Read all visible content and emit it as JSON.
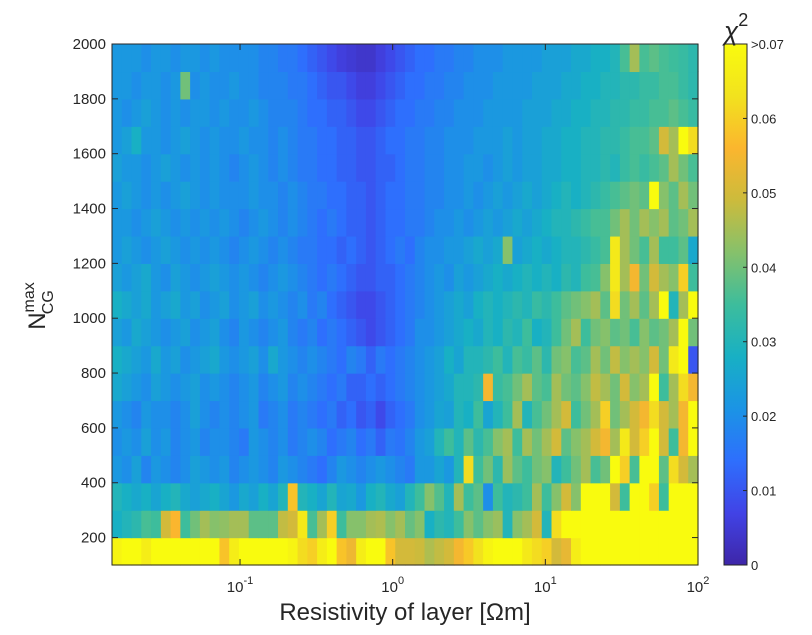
{
  "chart_data": {
    "type": "heatmap",
    "title": "",
    "xlabel": "Resistivity of layer [Ωm]",
    "ylabel": "N_CG^max",
    "ylabel_main": "N",
    "ylabel_sup": "max",
    "ylabel_sub": "CG",
    "x_scale": "log",
    "xlim": [
      0.0145,
      100
    ],
    "x_ticks": [
      {
        "value": 0.1,
        "base": "10",
        "exp": "-1"
      },
      {
        "value": 1,
        "base": "10",
        "exp": "0"
      },
      {
        "value": 10,
        "base": "10",
        "exp": "1"
      },
      {
        "value": 100,
        "base": "10",
        "exp": "2"
      }
    ],
    "ylim": [
      100,
      2000
    ],
    "y_ticks": [
      "200",
      "400",
      "600",
      "800",
      "1000",
      "1200",
      "1400",
      "1600",
      "1800",
      "2000"
    ],
    "y_rows": [
      150,
      250,
      350,
      450,
      550,
      650,
      750,
      850,
      950,
      1050,
      1150,
      1250,
      1350,
      1450,
      1550,
      1650,
      1750,
      1850,
      1950
    ],
    "colorbar": {
      "label_main": "χ",
      "label_sup": "2",
      "range": [
        0,
        0.07
      ],
      "ticks": [
        "0",
        "0.01",
        "0.02",
        "0.03",
        "0.04",
        "0.05",
        "0.06",
        ">0.07"
      ],
      "colormap": [
        "#3e26a8",
        "#4143e6",
        "#2e6ffd",
        "#1b94e5",
        "#18b0c4",
        "#3dbd9c",
        "#86c16b",
        "#ccbb3c",
        "#fbb62e",
        "#f2e21e",
        "#f9fb0e"
      ]
    },
    "columns": 60,
    "values_note_rows_bottom_to_top": "each row is chi^2 per column from low to high resistivity",
    "values": [
      [
        0.068,
        0.07,
        0.07,
        0.066,
        0.07,
        0.07,
        0.07,
        0.07,
        0.07,
        0.07,
        0.07,
        0.058,
        0.066,
        0.07,
        0.07,
        0.07,
        0.07,
        0.07,
        0.068,
        0.062,
        0.06,
        0.066,
        0.07,
        0.058,
        0.054,
        0.066,
        0.07,
        0.07,
        0.058,
        0.05,
        0.05,
        0.049,
        0.046,
        0.048,
        0.05,
        0.055,
        0.059,
        0.063,
        0.068,
        0.07,
        0.07,
        0.07,
        0.065,
        0.062,
        0.06,
        0.05,
        0.053,
        0.066,
        0.07,
        0.07,
        0.07,
        0.07,
        0.07,
        0.07,
        0.07,
        0.07,
        0.07,
        0.07,
        0.07,
        0.07
      ],
      [
        0.028,
        0.03,
        0.032,
        0.036,
        0.035,
        0.05,
        0.056,
        0.035,
        0.04,
        0.045,
        0.042,
        0.043,
        0.045,
        0.045,
        0.038,
        0.038,
        0.038,
        0.048,
        0.05,
        0.065,
        0.036,
        0.045,
        0.06,
        0.035,
        0.042,
        0.042,
        0.045,
        0.046,
        0.042,
        0.045,
        0.039,
        0.042,
        0.028,
        0.032,
        0.03,
        0.035,
        0.042,
        0.038,
        0.042,
        0.044,
        0.03,
        0.042,
        0.045,
        0.05,
        0.03,
        0.062,
        0.07,
        0.07,
        0.07,
        0.07,
        0.07,
        0.07,
        0.07,
        0.07,
        0.07,
        0.07,
        0.07,
        0.07,
        0.07,
        0.07
      ],
      [
        0.03,
        0.028,
        0.026,
        0.028,
        0.025,
        0.028,
        0.03,
        0.026,
        0.024,
        0.026,
        0.028,
        0.025,
        0.022,
        0.026,
        0.024,
        0.028,
        0.025,
        0.03,
        0.058,
        0.03,
        0.028,
        0.025,
        0.03,
        0.025,
        0.026,
        0.022,
        0.028,
        0.03,
        0.026,
        0.024,
        0.03,
        0.035,
        0.042,
        0.037,
        0.03,
        0.045,
        0.035,
        0.038,
        0.02,
        0.035,
        0.03,
        0.032,
        0.035,
        0.045,
        0.035,
        0.042,
        0.05,
        0.042,
        0.07,
        0.07,
        0.07,
        0.05,
        0.035,
        0.07,
        0.07,
        0.06,
        0.035,
        0.07,
        0.07,
        0.07
      ],
      [
        0.022,
        0.02,
        0.024,
        0.018,
        0.022,
        0.02,
        0.018,
        0.02,
        0.024,
        0.022,
        0.02,
        0.022,
        0.018,
        0.02,
        0.022,
        0.02,
        0.018,
        0.022,
        0.02,
        0.018,
        0.016,
        0.014,
        0.018,
        0.022,
        0.02,
        0.018,
        0.02,
        0.022,
        0.02,
        0.018,
        0.016,
        0.022,
        0.022,
        0.025,
        0.022,
        0.03,
        0.062,
        0.035,
        0.04,
        0.032,
        0.044,
        0.038,
        0.035,
        0.04,
        0.042,
        0.03,
        0.035,
        0.04,
        0.045,
        0.036,
        0.04,
        0.07,
        0.06,
        0.036,
        0.07,
        0.07,
        0.038,
        0.062,
        0.05,
        0.045
      ],
      [
        0.02,
        0.022,
        0.02,
        0.024,
        0.02,
        0.022,
        0.018,
        0.02,
        0.022,
        0.018,
        0.02,
        0.02,
        0.018,
        0.016,
        0.022,
        0.02,
        0.018,
        0.02,
        0.016,
        0.018,
        0.02,
        0.018,
        0.014,
        0.016,
        0.018,
        0.014,
        0.016,
        0.012,
        0.016,
        0.015,
        0.018,
        0.022,
        0.024,
        0.03,
        0.035,
        0.03,
        0.038,
        0.032,
        0.036,
        0.042,
        0.045,
        0.035,
        0.045,
        0.04,
        0.045,
        0.05,
        0.038,
        0.042,
        0.045,
        0.05,
        0.055,
        0.045,
        0.065,
        0.05,
        0.06,
        0.07,
        0.05,
        0.035,
        0.055,
        0.07
      ],
      [
        0.022,
        0.02,
        0.018,
        0.022,
        0.02,
        0.02,
        0.018,
        0.02,
        0.024,
        0.02,
        0.018,
        0.02,
        0.018,
        0.02,
        0.022,
        0.016,
        0.018,
        0.02,
        0.016,
        0.018,
        0.016,
        0.014,
        0.016,
        0.012,
        0.014,
        0.01,
        0.012,
        0.008,
        0.012,
        0.014,
        0.016,
        0.02,
        0.022,
        0.025,
        0.024,
        0.03,
        0.028,
        0.035,
        0.025,
        0.03,
        0.035,
        0.045,
        0.03,
        0.036,
        0.04,
        0.045,
        0.05,
        0.035,
        0.04,
        0.045,
        0.06,
        0.04,
        0.045,
        0.05,
        0.055,
        0.062,
        0.05,
        0.045,
        0.055,
        0.07
      ],
      [
        0.026,
        0.024,
        0.022,
        0.02,
        0.024,
        0.022,
        0.02,
        0.022,
        0.024,
        0.02,
        0.022,
        0.02,
        0.018,
        0.02,
        0.022,
        0.018,
        0.02,
        0.022,
        0.018,
        0.02,
        0.018,
        0.016,
        0.014,
        0.016,
        0.012,
        0.012,
        0.014,
        0.012,
        0.014,
        0.016,
        0.018,
        0.02,
        0.022,
        0.024,
        0.026,
        0.03,
        0.03,
        0.032,
        0.055,
        0.034,
        0.036,
        0.04,
        0.045,
        0.038,
        0.036,
        0.045,
        0.04,
        0.038,
        0.042,
        0.048,
        0.045,
        0.04,
        0.05,
        0.042,
        0.045,
        0.07,
        0.035,
        0.045,
        0.062,
        0.055
      ],
      [
        0.028,
        0.026,
        0.024,
        0.022,
        0.026,
        0.022,
        0.024,
        0.02,
        0.022,
        0.024,
        0.026,
        0.022,
        0.02,
        0.022,
        0.024,
        0.02,
        0.026,
        0.022,
        0.02,
        0.018,
        0.02,
        0.018,
        0.016,
        0.014,
        0.018,
        0.016,
        0.012,
        0.016,
        0.014,
        0.016,
        0.018,
        0.02,
        0.022,
        0.024,
        0.028,
        0.025,
        0.03,
        0.03,
        0.032,
        0.035,
        0.03,
        0.036,
        0.034,
        0.038,
        0.032,
        0.04,
        0.042,
        0.036,
        0.038,
        0.045,
        0.04,
        0.048,
        0.042,
        0.045,
        0.042,
        0.05,
        0.04,
        0.065,
        0.07,
        0.01
      ],
      [
        0.024,
        0.022,
        0.026,
        0.024,
        0.022,
        0.02,
        0.022,
        0.024,
        0.02,
        0.022,
        0.024,
        0.02,
        0.018,
        0.022,
        0.02,
        0.018,
        0.02,
        0.022,
        0.018,
        0.016,
        0.018,
        0.014,
        0.016,
        0.014,
        0.012,
        0.01,
        0.008,
        0.01,
        0.012,
        0.014,
        0.016,
        0.02,
        0.02,
        0.022,
        0.024,
        0.026,
        0.028,
        0.026,
        0.03,
        0.028,
        0.032,
        0.03,
        0.035,
        0.028,
        0.03,
        0.035,
        0.04,
        0.045,
        0.035,
        0.04,
        0.042,
        0.038,
        0.04,
        0.036,
        0.042,
        0.038,
        0.04,
        0.045,
        0.07,
        0.04
      ],
      [
        0.028,
        0.026,
        0.024,
        0.026,
        0.022,
        0.024,
        0.026,
        0.022,
        0.024,
        0.02,
        0.022,
        0.024,
        0.02,
        0.022,
        0.024,
        0.02,
        0.022,
        0.02,
        0.018,
        0.02,
        0.016,
        0.018,
        0.014,
        0.012,
        0.01,
        0.008,
        0.008,
        0.01,
        0.012,
        0.014,
        0.016,
        0.018,
        0.02,
        0.022,
        0.024,
        0.026,
        0.024,
        0.028,
        0.03,
        0.028,
        0.03,
        0.032,
        0.03,
        0.034,
        0.032,
        0.035,
        0.038,
        0.04,
        0.042,
        0.045,
        0.038,
        0.062,
        0.04,
        0.045,
        0.038,
        0.045,
        0.07,
        0.03,
        0.045,
        0.07
      ],
      [
        0.024,
        0.022,
        0.024,
        0.026,
        0.022,
        0.02,
        0.024,
        0.022,
        0.02,
        0.022,
        0.024,
        0.022,
        0.02,
        0.022,
        0.02,
        0.018,
        0.02,
        0.022,
        0.02,
        0.018,
        0.016,
        0.014,
        0.016,
        0.014,
        0.012,
        0.01,
        0.01,
        0.012,
        0.012,
        0.014,
        0.016,
        0.018,
        0.02,
        0.022,
        0.02,
        0.024,
        0.022,
        0.024,
        0.026,
        0.028,
        0.026,
        0.028,
        0.03,
        0.028,
        0.03,
        0.028,
        0.032,
        0.03,
        0.035,
        0.036,
        0.042,
        0.065,
        0.045,
        0.055,
        0.04,
        0.05,
        0.045,
        0.042,
        0.06,
        0.035
      ],
      [
        0.022,
        0.024,
        0.022,
        0.02,
        0.022,
        0.024,
        0.022,
        0.02,
        0.022,
        0.02,
        0.022,
        0.02,
        0.018,
        0.02,
        0.022,
        0.02,
        0.018,
        0.02,
        0.018,
        0.016,
        0.016,
        0.014,
        0.014,
        0.012,
        0.014,
        0.012,
        0.01,
        0.012,
        0.014,
        0.016,
        0.014,
        0.018,
        0.02,
        0.02,
        0.022,
        0.022,
        0.024,
        0.026,
        0.024,
        0.026,
        0.042,
        0.024,
        0.026,
        0.028,
        0.026,
        0.028,
        0.03,
        0.03,
        0.032,
        0.034,
        0.036,
        0.065,
        0.045,
        0.04,
        0.036,
        0.045,
        0.035,
        0.035,
        0.038,
        0.026
      ],
      [
        0.022,
        0.022,
        0.02,
        0.022,
        0.024,
        0.022,
        0.02,
        0.022,
        0.02,
        0.022,
        0.02,
        0.022,
        0.02,
        0.018,
        0.02,
        0.022,
        0.02,
        0.018,
        0.02,
        0.018,
        0.016,
        0.014,
        0.016,
        0.014,
        0.012,
        0.012,
        0.01,
        0.012,
        0.014,
        0.014,
        0.016,
        0.016,
        0.018,
        0.02,
        0.02,
        0.022,
        0.02,
        0.022,
        0.024,
        0.022,
        0.024,
        0.026,
        0.024,
        0.026,
        0.028,
        0.03,
        0.03,
        0.032,
        0.034,
        0.036,
        0.036,
        0.04,
        0.045,
        0.04,
        0.045,
        0.042,
        0.045,
        0.038,
        0.04,
        0.045
      ],
      [
        0.022,
        0.024,
        0.022,
        0.02,
        0.022,
        0.02,
        0.022,
        0.024,
        0.022,
        0.02,
        0.022,
        0.02,
        0.02,
        0.02,
        0.022,
        0.02,
        0.02,
        0.018,
        0.02,
        0.018,
        0.016,
        0.016,
        0.014,
        0.014,
        0.012,
        0.012,
        0.01,
        0.012,
        0.014,
        0.014,
        0.016,
        0.016,
        0.018,
        0.018,
        0.02,
        0.02,
        0.022,
        0.02,
        0.022,
        0.024,
        0.022,
        0.024,
        0.026,
        0.024,
        0.026,
        0.028,
        0.03,
        0.028,
        0.03,
        0.032,
        0.034,
        0.036,
        0.038,
        0.04,
        0.038,
        0.07,
        0.042,
        0.038,
        0.045,
        0.04
      ],
      [
        0.024,
        0.022,
        0.022,
        0.02,
        0.022,
        0.024,
        0.022,
        0.02,
        0.022,
        0.02,
        0.022,
        0.02,
        0.018,
        0.02,
        0.022,
        0.02,
        0.018,
        0.02,
        0.018,
        0.016,
        0.016,
        0.014,
        0.014,
        0.012,
        0.012,
        0.01,
        0.01,
        0.012,
        0.012,
        0.014,
        0.016,
        0.016,
        0.018,
        0.018,
        0.02,
        0.02,
        0.022,
        0.022,
        0.02,
        0.022,
        0.024,
        0.022,
        0.024,
        0.024,
        0.026,
        0.026,
        0.028,
        0.028,
        0.03,
        0.03,
        0.032,
        0.03,
        0.034,
        0.036,
        0.034,
        0.036,
        0.038,
        0.045,
        0.04,
        0.036
      ],
      [
        0.022,
        0.024,
        0.028,
        0.022,
        0.022,
        0.02,
        0.022,
        0.024,
        0.022,
        0.02,
        0.022,
        0.02,
        0.02,
        0.022,
        0.02,
        0.02,
        0.018,
        0.02,
        0.018,
        0.016,
        0.016,
        0.014,
        0.014,
        0.012,
        0.012,
        0.01,
        0.01,
        0.012,
        0.014,
        0.014,
        0.016,
        0.016,
        0.018,
        0.018,
        0.02,
        0.02,
        0.02,
        0.022,
        0.022,
        0.022,
        0.024,
        0.022,
        0.024,
        0.024,
        0.026,
        0.026,
        0.028,
        0.028,
        0.03,
        0.03,
        0.032,
        0.032,
        0.034,
        0.036,
        0.036,
        0.038,
        0.05,
        0.045,
        0.07,
        0.062
      ],
      [
        0.022,
        0.02,
        0.022,
        0.024,
        0.022,
        0.02,
        0.022,
        0.02,
        0.022,
        0.022,
        0.02,
        0.022,
        0.02,
        0.02,
        0.022,
        0.02,
        0.018,
        0.018,
        0.018,
        0.016,
        0.014,
        0.014,
        0.012,
        0.012,
        0.01,
        0.008,
        0.008,
        0.01,
        0.012,
        0.014,
        0.014,
        0.016,
        0.016,
        0.018,
        0.018,
        0.02,
        0.02,
        0.02,
        0.022,
        0.022,
        0.022,
        0.022,
        0.024,
        0.024,
        0.024,
        0.026,
        0.026,
        0.028,
        0.028,
        0.03,
        0.03,
        0.032,
        0.032,
        0.034,
        0.034,
        0.036,
        0.036,
        0.038,
        0.036,
        0.034
      ],
      [
        0.022,
        0.022,
        0.02,
        0.022,
        0.022,
        0.02,
        0.022,
        0.04,
        0.02,
        0.022,
        0.02,
        0.02,
        0.022,
        0.02,
        0.02,
        0.018,
        0.018,
        0.018,
        0.016,
        0.016,
        0.014,
        0.012,
        0.01,
        0.01,
        0.008,
        0.006,
        0.006,
        0.008,
        0.01,
        0.012,
        0.014,
        0.014,
        0.016,
        0.016,
        0.018,
        0.018,
        0.02,
        0.02,
        0.02,
        0.022,
        0.022,
        0.022,
        0.022,
        0.024,
        0.024,
        0.024,
        0.026,
        0.026,
        0.028,
        0.028,
        0.03,
        0.03,
        0.032,
        0.032,
        0.034,
        0.034,
        0.036,
        0.036,
        0.034,
        0.032
      ],
      [
        0.022,
        0.022,
        0.022,
        0.02,
        0.022,
        0.022,
        0.02,
        0.022,
        0.022,
        0.02,
        0.022,
        0.02,
        0.02,
        0.02,
        0.02,
        0.018,
        0.018,
        0.016,
        0.016,
        0.014,
        0.012,
        0.01,
        0.008,
        0.006,
        0.005,
        0.004,
        0.004,
        0.006,
        0.008,
        0.01,
        0.012,
        0.014,
        0.014,
        0.016,
        0.016,
        0.018,
        0.018,
        0.02,
        0.02,
        0.02,
        0.022,
        0.022,
        0.022,
        0.022,
        0.024,
        0.024,
        0.024,
        0.026,
        0.026,
        0.028,
        0.028,
        0.03,
        0.036,
        0.045,
        0.036,
        0.038,
        0.036,
        0.035,
        0.034,
        0.032
      ]
    ]
  }
}
